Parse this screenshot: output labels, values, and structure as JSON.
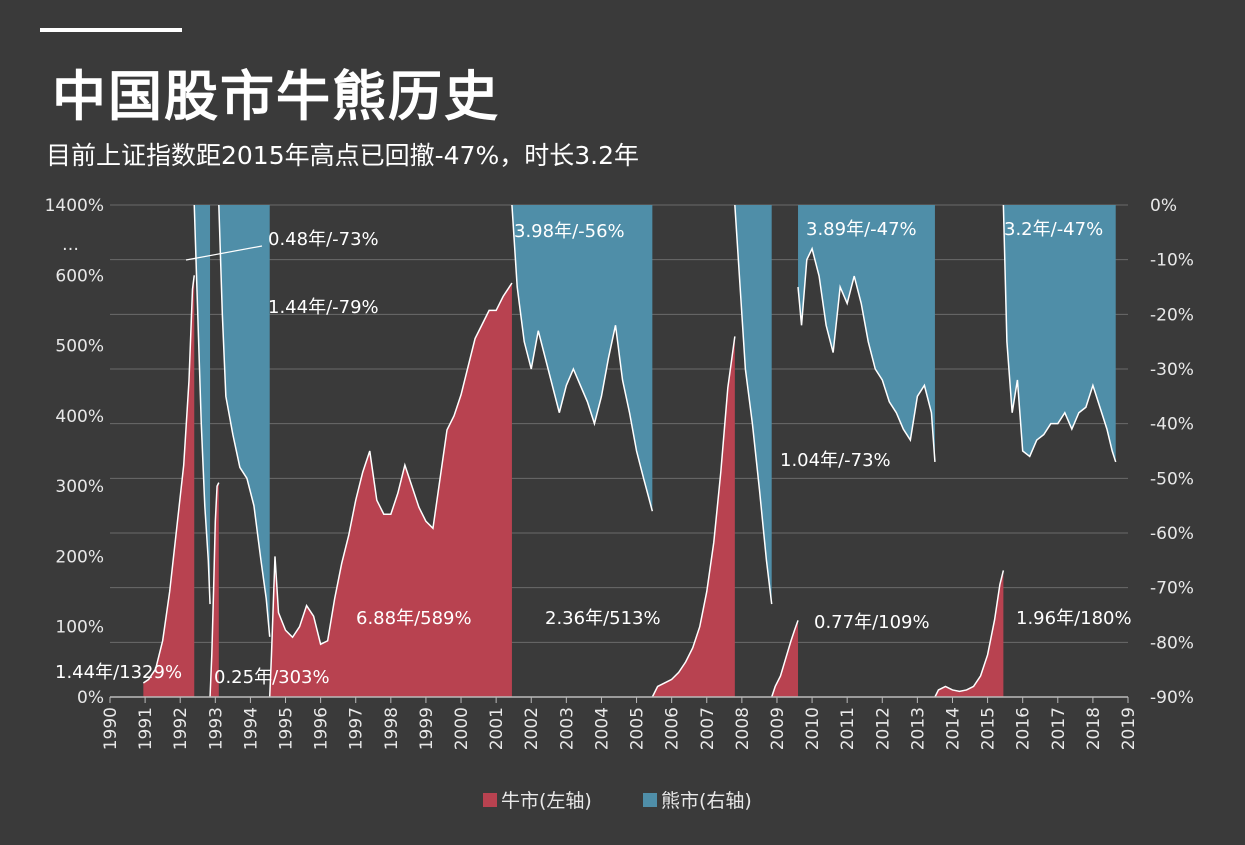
{
  "title": "中国股市牛熊历史",
  "subtitle": "目前上证指数距2015年高点已回撤-47%，时长3.2年",
  "colors": {
    "background": "#3a3a3a",
    "bull": "#b84250",
    "bear": "#4f8ea8",
    "line": "#ffffff",
    "grid": "#6a6a6a"
  },
  "chart_data": {
    "type": "area",
    "x_range": [
      1990,
      2019
    ],
    "x_ticks": [
      "1990",
      "1991",
      "1992",
      "1993",
      "1994",
      "1995",
      "1996",
      "1997",
      "1998",
      "1999",
      "2000",
      "2001",
      "2002",
      "2003",
      "2004",
      "2005",
      "2006",
      "2007",
      "2008",
      "2009",
      "2010",
      "2011",
      "2012",
      "2013",
      "2014",
      "2015",
      "2016",
      "2017",
      "2018",
      "2019"
    ],
    "y_left": {
      "range": [
        0,
        700
      ],
      "ticks": [
        0,
        100,
        200,
        300,
        400,
        500,
        600
      ],
      "tick_labels": [
        "0%",
        "100%",
        "200%",
        "300%",
        "400%",
        "500%",
        "600%"
      ],
      "break_label": "…",
      "top_label": "1400%"
    },
    "y_right": {
      "range": [
        -90,
        0
      ],
      "ticks": [
        0,
        -10,
        -20,
        -30,
        -40,
        -50,
        -60,
        -70,
        -80,
        -90
      ],
      "tick_labels": [
        "0%",
        "-10%",
        "-20%",
        "-30%",
        "-40%",
        "-50%",
        "-60%",
        "-70%",
        "-80%",
        "-90%"
      ]
    },
    "legend": [
      {
        "label": "牛市(左轴)",
        "color": "#b84250"
      },
      {
        "label": "熊市(右轴)",
        "color": "#4f8ea8"
      }
    ],
    "bull_markets": [
      {
        "start": 1990.95,
        "end": 1992.4,
        "label": "1.44年/1329%",
        "points": [
          [
            1990.95,
            20
          ],
          [
            1991.1,
            25
          ],
          [
            1991.3,
            40
          ],
          [
            1991.5,
            80
          ],
          [
            1991.7,
            150
          ],
          [
            1991.9,
            240
          ],
          [
            1992.1,
            330
          ],
          [
            1992.25,
            450
          ],
          [
            1992.35,
            580
          ],
          [
            1992.4,
            600
          ]
        ]
      },
      {
        "start": 1992.85,
        "end": 1993.1,
        "label": "0.25年/303%",
        "points": [
          [
            1992.85,
            0
          ],
          [
            1992.9,
            60
          ],
          [
            1992.95,
            150
          ],
          [
            1993.0,
            250
          ],
          [
            1993.05,
            300
          ],
          [
            1993.1,
            305
          ]
        ]
      },
      {
        "start": 1994.55,
        "end": 2001.45,
        "label": "6.88年/589%",
        "points": [
          [
            1994.55,
            0
          ],
          [
            1994.6,
            60
          ],
          [
            1994.7,
            200
          ],
          [
            1994.8,
            120
          ],
          [
            1995.0,
            95
          ],
          [
            1995.2,
            85
          ],
          [
            1995.4,
            100
          ],
          [
            1995.6,
            130
          ],
          [
            1995.8,
            115
          ],
          [
            1996.0,
            75
          ],
          [
            1996.2,
            80
          ],
          [
            1996.4,
            140
          ],
          [
            1996.6,
            190
          ],
          [
            1996.8,
            230
          ],
          [
            1997.0,
            280
          ],
          [
            1997.2,
            320
          ],
          [
            1997.4,
            350
          ],
          [
            1997.6,
            280
          ],
          [
            1997.8,
            260
          ],
          [
            1998.0,
            260
          ],
          [
            1998.2,
            290
          ],
          [
            1998.4,
            330
          ],
          [
            1998.6,
            300
          ],
          [
            1998.8,
            270
          ],
          [
            1999.0,
            250
          ],
          [
            1999.2,
            240
          ],
          [
            1999.4,
            310
          ],
          [
            1999.6,
            380
          ],
          [
            1999.8,
            400
          ],
          [
            2000.0,
            430
          ],
          [
            2000.2,
            470
          ],
          [
            2000.4,
            510
          ],
          [
            2000.6,
            530
          ],
          [
            2000.8,
            550
          ],
          [
            2001.0,
            550
          ],
          [
            2001.2,
            570
          ],
          [
            2001.45,
            589
          ]
        ]
      },
      {
        "start": 2005.45,
        "end": 2007.8,
        "label": "2.36年/513%",
        "points": [
          [
            2005.45,
            0
          ],
          [
            2005.6,
            15
          ],
          [
            2005.8,
            20
          ],
          [
            2006.0,
            25
          ],
          [
            2006.2,
            35
          ],
          [
            2006.4,
            50
          ],
          [
            2006.6,
            70
          ],
          [
            2006.8,
            100
          ],
          [
            2007.0,
            150
          ],
          [
            2007.2,
            220
          ],
          [
            2007.4,
            320
          ],
          [
            2007.6,
            440
          ],
          [
            2007.8,
            513
          ]
        ]
      },
      {
        "start": 2008.85,
        "end": 2009.6,
        "label": "0.77年/109%",
        "points": [
          [
            2008.85,
            0
          ],
          [
            2008.95,
            15
          ],
          [
            2009.1,
            30
          ],
          [
            2009.25,
            55
          ],
          [
            2009.4,
            80
          ],
          [
            2009.5,
            95
          ],
          [
            2009.6,
            109
          ]
        ]
      },
      {
        "start": 2013.5,
        "end": 2015.45,
        "label": "1.96年/180%",
        "points": [
          [
            2013.5,
            0
          ],
          [
            2013.6,
            10
          ],
          [
            2013.8,
            15
          ],
          [
            2014.0,
            10
          ],
          [
            2014.2,
            8
          ],
          [
            2014.4,
            10
          ],
          [
            2014.6,
            15
          ],
          [
            2014.8,
            30
          ],
          [
            2015.0,
            60
          ],
          [
            2015.2,
            110
          ],
          [
            2015.35,
            160
          ],
          [
            2015.45,
            180
          ]
        ]
      }
    ],
    "bear_markets": [
      {
        "start": 1992.4,
        "end": 1992.85,
        "label": "0.48年/-73%",
        "points": [
          [
            1992.4,
            0
          ],
          [
            1992.5,
            -20
          ],
          [
            1992.6,
            -40
          ],
          [
            1992.7,
            -55
          ],
          [
            1992.8,
            -65
          ],
          [
            1992.85,
            -73
          ]
        ]
      },
      {
        "start": 1993.1,
        "end": 1994.55,
        "label": "1.44年/-79%",
        "points": [
          [
            1993.1,
            0
          ],
          [
            1993.2,
            -20
          ],
          [
            1993.3,
            -35
          ],
          [
            1993.5,
            -42
          ],
          [
            1993.7,
            -48
          ],
          [
            1993.9,
            -50
          ],
          [
            1994.1,
            -55
          ],
          [
            1994.3,
            -65
          ],
          [
            1994.45,
            -72
          ],
          [
            1994.55,
            -79
          ]
        ]
      },
      {
        "start": 2001.45,
        "end": 2005.45,
        "label": "3.98年/-56%",
        "points": [
          [
            2001.45,
            0
          ],
          [
            2001.6,
            -15
          ],
          [
            2001.8,
            -25
          ],
          [
            2002.0,
            -30
          ],
          [
            2002.2,
            -23
          ],
          [
            2002.4,
            -28
          ],
          [
            2002.6,
            -33
          ],
          [
            2002.8,
            -38
          ],
          [
            2003.0,
            -33
          ],
          [
            2003.2,
            -30
          ],
          [
            2003.4,
            -33
          ],
          [
            2003.6,
            -36
          ],
          [
            2003.8,
            -40
          ],
          [
            2004.0,
            -35
          ],
          [
            2004.2,
            -28
          ],
          [
            2004.4,
            -22
          ],
          [
            2004.6,
            -32
          ],
          [
            2004.8,
            -38
          ],
          [
            2005.0,
            -45
          ],
          [
            2005.2,
            -50
          ],
          [
            2005.45,
            -56
          ]
        ]
      },
      {
        "start": 2007.8,
        "end": 2008.85,
        "label": "1.04年/-73%",
        "points": [
          [
            2007.8,
            0
          ],
          [
            2007.95,
            -15
          ],
          [
            2008.1,
            -30
          ],
          [
            2008.3,
            -40
          ],
          [
            2008.5,
            -52
          ],
          [
            2008.7,
            -65
          ],
          [
            2008.85,
            -73
          ]
        ]
      },
      {
        "start": 2009.6,
        "end": 2013.5,
        "label": "3.89年/-47%",
        "points": [
          [
            2009.6,
            -15
          ],
          [
            2009.7,
            -22
          ],
          [
            2009.85,
            -10
          ],
          [
            2010.0,
            -8
          ],
          [
            2010.2,
            -13
          ],
          [
            2010.4,
            -22
          ],
          [
            2010.6,
            -27
          ],
          [
            2010.8,
            -15
          ],
          [
            2011.0,
            -18
          ],
          [
            2011.2,
            -13
          ],
          [
            2011.4,
            -18
          ],
          [
            2011.6,
            -25
          ],
          [
            2011.8,
            -30
          ],
          [
            2012.0,
            -32
          ],
          [
            2012.2,
            -36
          ],
          [
            2012.4,
            -38
          ],
          [
            2012.6,
            -41
          ],
          [
            2012.8,
            -43
          ],
          [
            2013.0,
            -35
          ],
          [
            2013.2,
            -33
          ],
          [
            2013.4,
            -38
          ],
          [
            2013.5,
            -47
          ]
        ]
      },
      {
        "start": 2015.45,
        "end": 2018.65,
        "label": "3.2年/-47%",
        "points": [
          [
            2015.45,
            0
          ],
          [
            2015.55,
            -25
          ],
          [
            2015.7,
            -38
          ],
          [
            2015.85,
            -32
          ],
          [
            2016.0,
            -45
          ],
          [
            2016.2,
            -46
          ],
          [
            2016.4,
            -43
          ],
          [
            2016.6,
            -42
          ],
          [
            2016.8,
            -40
          ],
          [
            2017.0,
            -40
          ],
          [
            2017.2,
            -38
          ],
          [
            2017.4,
            -41
          ],
          [
            2017.6,
            -38
          ],
          [
            2017.8,
            -37
          ],
          [
            2018.0,
            -33
          ],
          [
            2018.2,
            -37
          ],
          [
            2018.4,
            -41
          ],
          [
            2018.55,
            -45
          ],
          [
            2018.65,
            -47
          ]
        ]
      }
    ]
  }
}
